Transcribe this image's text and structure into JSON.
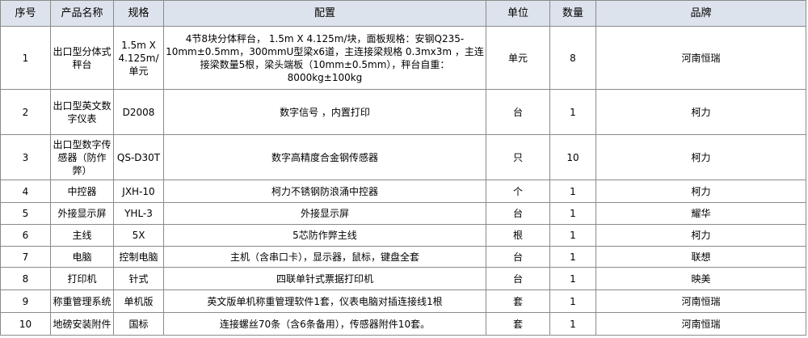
{
  "table": {
    "header": [
      "序号",
      "产品名称",
      "规格",
      "配置",
      "单位",
      "数量",
      "品牌"
    ],
    "rows": [
      [
        1,
        "出口型分体式秤台",
        "1.5m X 4.125m/单元",
        "4节8块分体秤台， 1.5m X 4.125m/块，面板规格：安钢Q235-10mm±0.5mm，300mmU型梁x6道，主连接梁规格 0.3mx3m ，主连接梁数量5根，梁头端板（10mm±0.5mm），秤台自重：8000kg±100kg",
        "单元",
        8,
        "河南恒瑞"
      ],
      [
        2,
        "出口型英文数字仪表",
        "D2008",
        "数字信号 ，内置打印",
        "台",
        1,
        "柯力"
      ],
      [
        3,
        "出口型数字传感器（防作弊）",
        "QS-D30T",
        "数字高精度合金钢传感器",
        "只",
        10,
        "柯力"
      ],
      [
        4,
        "中控器",
        "JXH-10",
        "柯力不锈钢防浪涌中控器",
        "个",
        1,
        "柯力"
      ],
      [
        5,
        "外接显示屏",
        "YHL-3",
        "外接显示屏",
        "台",
        1,
        "耀华"
      ],
      [
        6,
        "主线",
        "5X",
        "5芯防作弊主线",
        "根",
        1,
        "柯力"
      ],
      [
        7,
        "电脑",
        "控制电脑",
        "主机（含串口卡），显示器，鼠标，键盘全套",
        "台",
        1,
        "联想"
      ],
      [
        8,
        "打印机",
        "针式",
        "四联单针式票据打印机",
        "台",
        1,
        "映美"
      ],
      [
        9,
        "称重管理系统",
        "单机版",
        "英文版单机称重管理软件1套，仪表电脑对插连接线1根",
        "套",
        1,
        "河南恒瑞"
      ],
      [
        10,
        "地磅安装附件",
        "国标",
        "连接螺丝70条（含6条备用），传感器附件10套。",
        "套",
        1,
        "河南恒瑞"
      ]
    ]
  }
}
